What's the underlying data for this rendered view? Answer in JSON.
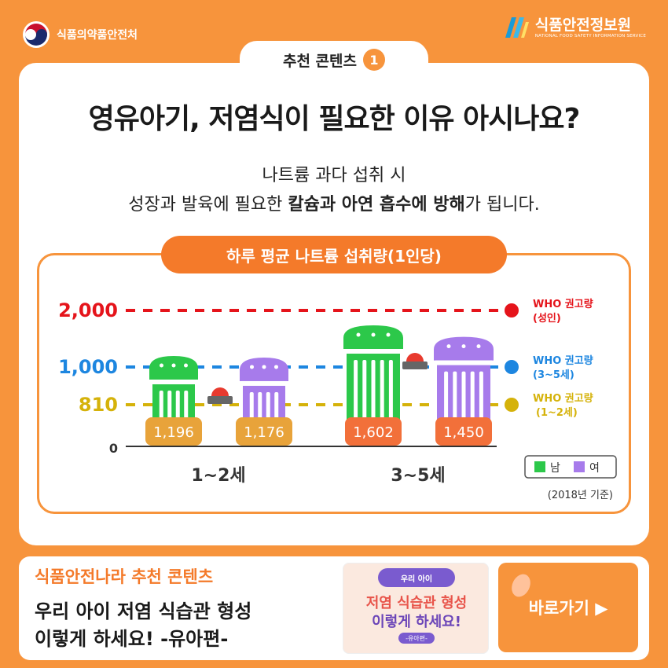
{
  "header": {
    "agency": "식품의약품안전처",
    "institute_ko": "식품안전정보원",
    "institute_en": "NATIONAL FOOD SAFETY INFORMATION SERVICE"
  },
  "tab": {
    "label": "추천 콘텐츠",
    "number": "1"
  },
  "headline": "영유아기, 저염식이 필요한 이유 아시나요?",
  "subtitle": {
    "line1": "나트륨 과다 섭취 시",
    "line2_pre": "성장과 발육에 필요한 ",
    "line2_bold1": "칼슘과 아연 흡수",
    "line2_mid": "에 ",
    "line2_bold2": "방해",
    "line2_post": "가 됩니다."
  },
  "chart_data": {
    "type": "bar",
    "title": "하루 평균 나트륨 섭취량(1인당)",
    "categories": [
      "1~2세",
      "3~5세"
    ],
    "series": [
      {
        "name": "남",
        "color": "#2CC84A",
        "values": [
          1196,
          1602
        ]
      },
      {
        "name": "여",
        "color": "#A77BEB",
        "values": [
          1176,
          1450
        ]
      }
    ],
    "reference_lines": [
      {
        "value": 2000,
        "label": "WHO 권고량\n(성인)",
        "color": "#E5141B"
      },
      {
        "value": 1000,
        "label": "WHO 권고량\n(3~5세)",
        "color": "#1D86E0"
      },
      {
        "value": 810,
        "label": "WHO 권고량\n(1~2세)",
        "color": "#D5B20A"
      }
    ],
    "ytick_labels": [
      "2,000",
      "1,000",
      "810",
      "0"
    ],
    "value_labels": [
      "1,196",
      "1,176",
      "1,602",
      "1,450"
    ],
    "label_box_colors": [
      "#E8A33A",
      "#E8A33A",
      "#F2703A",
      "#F2703A"
    ],
    "legend": [
      "남",
      "여"
    ],
    "note": "(2018년 기준)"
  },
  "bottom": {
    "title": "식품안전나라 추천 콘텐츠",
    "line1": "우리 아이 저염 식습관 형성",
    "line2": "이렇게 하세요! -유아편-",
    "thumb_pill": "우리 아이",
    "thumb_line1": "저염 식습관 형성",
    "thumb_line2": "이렇게 하세요!",
    "thumb_tag": "-유아편-",
    "button": "바로가기 ▶"
  }
}
